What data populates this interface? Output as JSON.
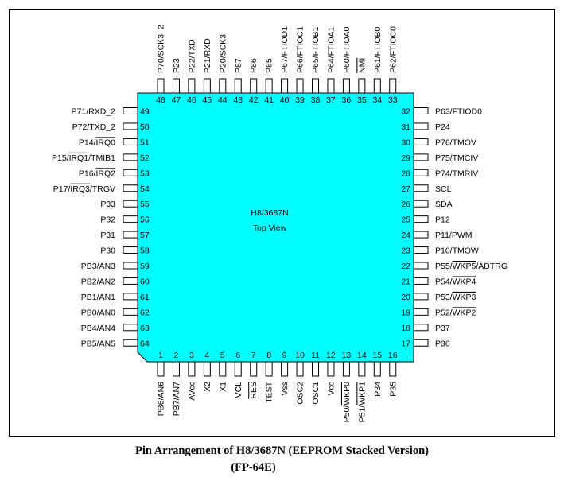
{
  "chip": {
    "name": "H8/3687N",
    "view": "Top View",
    "fill_color": "#00FFFF"
  },
  "pins": {
    "left": [
      {
        "num": "49",
        "parts": [
          {
            "t": "P71/RXD_2"
          }
        ]
      },
      {
        "num": "50",
        "parts": [
          {
            "t": "P72/TXD_2"
          }
        ]
      },
      {
        "num": "51",
        "parts": [
          {
            "t": "P14/"
          },
          {
            "t": "IRQ0",
            "o": true
          }
        ]
      },
      {
        "num": "52",
        "parts": [
          {
            "t": "P15/"
          },
          {
            "t": "IRQ1",
            "o": true
          },
          {
            "t": "/TMIB1"
          }
        ]
      },
      {
        "num": "53",
        "parts": [
          {
            "t": "P16/"
          },
          {
            "t": "IRQ2",
            "o": true
          }
        ]
      },
      {
        "num": "54",
        "parts": [
          {
            "t": "P17/"
          },
          {
            "t": "IRQ3",
            "o": true
          },
          {
            "t": "/TRGV"
          }
        ]
      },
      {
        "num": "55",
        "parts": [
          {
            "t": "P33"
          }
        ]
      },
      {
        "num": "56",
        "parts": [
          {
            "t": "P32"
          }
        ]
      },
      {
        "num": "57",
        "parts": [
          {
            "t": "P31"
          }
        ]
      },
      {
        "num": "58",
        "parts": [
          {
            "t": "P30"
          }
        ]
      },
      {
        "num": "59",
        "parts": [
          {
            "t": "PB3/AN3"
          }
        ]
      },
      {
        "num": "60",
        "parts": [
          {
            "t": "PB2/AN2"
          }
        ]
      },
      {
        "num": "61",
        "parts": [
          {
            "t": "PB1/AN1"
          }
        ]
      },
      {
        "num": "62",
        "parts": [
          {
            "t": "PB0/AN0"
          }
        ]
      },
      {
        "num": "63",
        "parts": [
          {
            "t": "PB4/AN4"
          }
        ]
      },
      {
        "num": "64",
        "parts": [
          {
            "t": "PB5/AN5"
          }
        ]
      }
    ],
    "right": [
      {
        "num": "32",
        "parts": [
          {
            "t": "P63/FTIOD0"
          }
        ]
      },
      {
        "num": "31",
        "parts": [
          {
            "t": "P24"
          }
        ]
      },
      {
        "num": "30",
        "parts": [
          {
            "t": "P76/TMOV"
          }
        ]
      },
      {
        "num": "29",
        "parts": [
          {
            "t": "P75/TMCIV"
          }
        ]
      },
      {
        "num": "28",
        "parts": [
          {
            "t": "P74/TMRIV"
          }
        ]
      },
      {
        "num": "27",
        "parts": [
          {
            "t": "SCL"
          }
        ]
      },
      {
        "num": "26",
        "parts": [
          {
            "t": "SDA"
          }
        ]
      },
      {
        "num": "25",
        "parts": [
          {
            "t": "P12"
          }
        ]
      },
      {
        "num": "24",
        "parts": [
          {
            "t": "P11/PWM"
          }
        ]
      },
      {
        "num": "23",
        "parts": [
          {
            "t": "P10/TMOW"
          }
        ]
      },
      {
        "num": "22",
        "parts": [
          {
            "t": "P55/"
          },
          {
            "t": "WKP5",
            "o": true
          },
          {
            "t": "/ADTRG"
          }
        ]
      },
      {
        "num": "21",
        "parts": [
          {
            "t": "P54/"
          },
          {
            "t": "WKP4",
            "o": true
          }
        ]
      },
      {
        "num": "20",
        "parts": [
          {
            "t": "P53/"
          },
          {
            "t": "WKP3",
            "o": true
          }
        ]
      },
      {
        "num": "19",
        "parts": [
          {
            "t": "P52/"
          },
          {
            "t": "WKP2",
            "o": true
          }
        ]
      },
      {
        "num": "18",
        "parts": [
          {
            "t": "P37"
          }
        ]
      },
      {
        "num": "17",
        "parts": [
          {
            "t": "P36"
          }
        ]
      }
    ],
    "top": [
      {
        "num": "48",
        "parts": [
          {
            "t": "P70/SCK3_2"
          }
        ]
      },
      {
        "num": "47",
        "parts": [
          {
            "t": "P23"
          }
        ]
      },
      {
        "num": "46",
        "parts": [
          {
            "t": "P22/TXD"
          }
        ]
      },
      {
        "num": "45",
        "parts": [
          {
            "t": "P21/RXD"
          }
        ]
      },
      {
        "num": "44",
        "parts": [
          {
            "t": "P20/SCK3"
          }
        ]
      },
      {
        "num": "43",
        "parts": [
          {
            "t": "P87"
          }
        ]
      },
      {
        "num": "42",
        "parts": [
          {
            "t": "P86"
          }
        ]
      },
      {
        "num": "41",
        "parts": [
          {
            "t": "P85"
          }
        ]
      },
      {
        "num": "40",
        "parts": [
          {
            "t": "P67/FTIOD1"
          }
        ]
      },
      {
        "num": "39",
        "parts": [
          {
            "t": "P66/FTIOC1"
          }
        ]
      },
      {
        "num": "38",
        "parts": [
          {
            "t": "P65/FTIOB1"
          }
        ]
      },
      {
        "num": "37",
        "parts": [
          {
            "t": "P64/FTIOA1"
          }
        ]
      },
      {
        "num": "36",
        "parts": [
          {
            "t": "P60/FTIOA0"
          }
        ]
      },
      {
        "num": "35",
        "parts": [
          {
            "t": "NMI",
            "o": true
          }
        ]
      },
      {
        "num": "34",
        "parts": [
          {
            "t": "P61/FTIOB0"
          }
        ]
      },
      {
        "num": "33",
        "parts": [
          {
            "t": "P62/FTIOC0"
          }
        ]
      }
    ],
    "bottom": [
      {
        "num": "1",
        "parts": [
          {
            "t": "PB6/AN6"
          }
        ]
      },
      {
        "num": "2",
        "parts": [
          {
            "t": "PB7/AN7"
          }
        ]
      },
      {
        "num": "3",
        "parts": [
          {
            "t": "AVcc"
          }
        ]
      },
      {
        "num": "4",
        "parts": [
          {
            "t": "X2"
          }
        ]
      },
      {
        "num": "5",
        "parts": [
          {
            "t": "X1"
          }
        ]
      },
      {
        "num": "6",
        "parts": [
          {
            "t": "VCL"
          }
        ]
      },
      {
        "num": "7",
        "parts": [
          {
            "t": "RES",
            "o": true
          }
        ]
      },
      {
        "num": "8",
        "parts": [
          {
            "t": "TEST"
          }
        ]
      },
      {
        "num": "9",
        "parts": [
          {
            "t": "Vss"
          }
        ]
      },
      {
        "num": "10",
        "parts": [
          {
            "t": "OSC2"
          }
        ]
      },
      {
        "num": "11",
        "parts": [
          {
            "t": "OSC1"
          }
        ]
      },
      {
        "num": "12",
        "parts": [
          {
            "t": "Vcc"
          }
        ]
      },
      {
        "num": "13",
        "parts": [
          {
            "t": "P50/"
          },
          {
            "t": "WKP0",
            "o": true
          }
        ]
      },
      {
        "num": "14",
        "parts": [
          {
            "t": "P51/"
          },
          {
            "t": "WKP1",
            "o": true
          }
        ]
      },
      {
        "num": "15",
        "parts": [
          {
            "t": "P34"
          }
        ]
      },
      {
        "num": "16",
        "parts": [
          {
            "t": "P35"
          }
        ]
      }
    ]
  },
  "caption": {
    "line1": "Pin Arrangement of H8/3687N (EEPROM Stacked Version)",
    "line2": "(FP-64E)"
  }
}
